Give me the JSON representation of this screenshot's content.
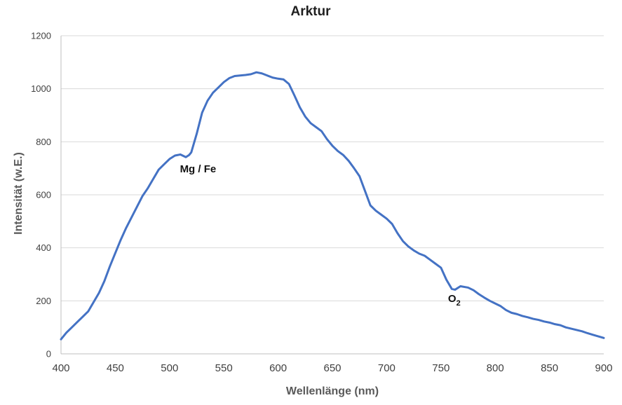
{
  "chart_data": {
    "type": "line",
    "title": "Arktur",
    "xlabel": "Wellenlänge (nm)",
    "ylabel": "Intensität (w.E.)",
    "xlim": [
      400,
      900
    ],
    "ylim": [
      0,
      1200
    ],
    "x_ticks": [
      400,
      450,
      500,
      550,
      600,
      650,
      700,
      750,
      800,
      850,
      900
    ],
    "y_ticks": [
      0,
      200,
      400,
      600,
      800,
      1000,
      1200
    ],
    "grid": true,
    "series": [
      {
        "color": "#4472c4",
        "x": [
          400,
          405,
          410,
          415,
          420,
          425,
          430,
          435,
          440,
          445,
          450,
          455,
          460,
          465,
          470,
          475,
          480,
          485,
          490,
          495,
          500,
          505,
          510,
          515,
          518,
          520,
          525,
          530,
          535,
          540,
          545,
          550,
          555,
          560,
          565,
          570,
          575,
          580,
          585,
          590,
          595,
          600,
          605,
          610,
          615,
          620,
          625,
          630,
          635,
          640,
          645,
          650,
          655,
          660,
          665,
          670,
          675,
          680,
          685,
          690,
          695,
          700,
          705,
          710,
          715,
          720,
          725,
          730,
          735,
          740,
          745,
          750,
          755,
          760,
          763,
          768,
          775,
          780,
          785,
          790,
          795,
          800,
          805,
          810,
          815,
          820,
          825,
          830,
          835,
          840,
          845,
          850,
          855,
          860,
          865,
          870,
          875,
          880,
          885,
          890,
          895,
          900
        ],
        "values": [
          55,
          80,
          100,
          120,
          140,
          160,
          195,
          230,
          275,
          330,
          380,
          430,
          475,
          515,
          555,
          595,
          625,
          660,
          695,
          715,
          735,
          748,
          752,
          742,
          750,
          760,
          830,
          910,
          955,
          985,
          1005,
          1025,
          1040,
          1048,
          1050,
          1052,
          1055,
          1062,
          1058,
          1050,
          1042,
          1038,
          1035,
          1018,
          975,
          930,
          895,
          870,
          855,
          840,
          810,
          785,
          765,
          750,
          728,
          700,
          670,
          615,
          560,
          540,
          525,
          510,
          490,
          455,
          425,
          405,
          390,
          378,
          370,
          355,
          340,
          325,
          280,
          245,
          242,
          255,
          250,
          240,
          225,
          212,
          200,
          190,
          180,
          165,
          155,
          150,
          143,
          138,
          132,
          128,
          122,
          118,
          112,
          108,
          100,
          95,
          90,
          85,
          78,
          72,
          66,
          60
        ]
      }
    ],
    "annotations": [
      {
        "text": "Mg / Fe",
        "x": 516,
        "y": 685
      },
      {
        "text": "O",
        "subscript": "2",
        "x": 763,
        "y": 195
      }
    ]
  }
}
